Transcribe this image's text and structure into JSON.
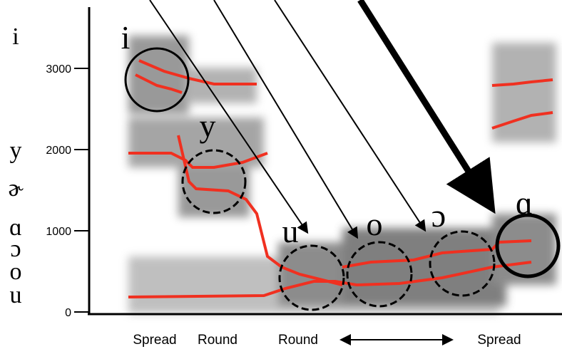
{
  "y_axis": {
    "ticks": [
      0,
      1000,
      2000,
      3000
    ]
  },
  "left_labels": [
    "i",
    "y",
    "ɚ",
    "ɑ",
    "ɔ",
    "o",
    "u"
  ],
  "vowel_labels": [
    "i",
    "y",
    "u",
    "o",
    "ɔ",
    "ɑ"
  ],
  "bottom_labels": [
    "Spread",
    "Round",
    "Round",
    "Spread"
  ]
}
